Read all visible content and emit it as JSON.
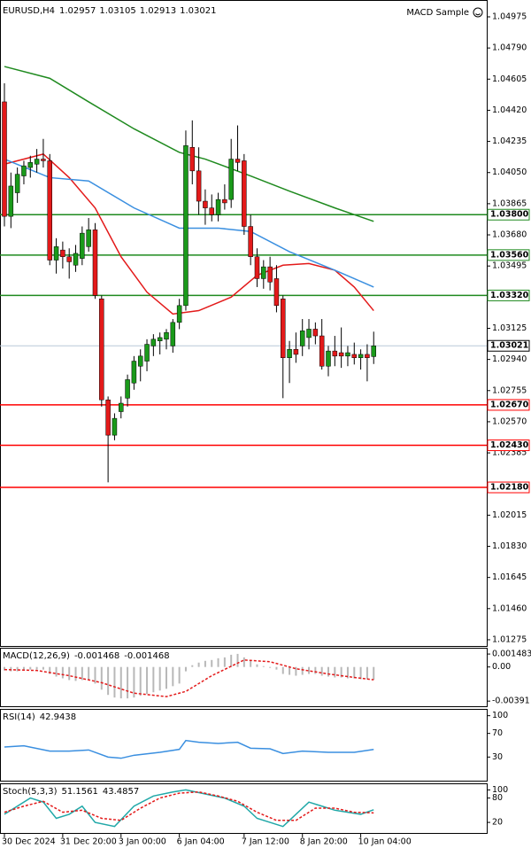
{
  "chart_data": [
    {
      "type": "candlestick",
      "title": "EURUSD,H4",
      "ohlc": [
        1.02957,
        1.03105,
        1.02913,
        1.03021
      ],
      "expert": "MACD Sample",
      "categories": [
        "30 Dec 2024",
        null,
        null,
        null,
        null,
        null,
        null,
        null,
        null,
        "31 Dec 20:00",
        null,
        null,
        null,
        null,
        null,
        null,
        null,
        null,
        "3 Jan 00:00",
        null,
        null,
        null,
        null,
        null,
        null,
        null,
        null,
        "6 Jan 04:00",
        null,
        null,
        null,
        null,
        null,
        null,
        null,
        null,
        null,
        "7 Jan 12:00",
        null,
        null,
        null,
        null,
        null,
        null,
        null,
        null,
        "8 Jan 20:00",
        null,
        null,
        null,
        null,
        null,
        null,
        null,
        null,
        "10 Jan 04:00",
        null,
        null
      ],
      "open": [
        1.0447,
        1.0379,
        1.0393,
        1.0403,
        1.0408,
        1.041,
        1.0413,
        1.0412,
        1.0353,
        1.0359,
        1.0355,
        1.035,
        1.0354,
        1.0361,
        1.0371,
        1.033,
        1.027,
        1.0249,
        1.0263,
        1.0271,
        1.028,
        1.029,
        1.0293,
        1.0302,
        1.0305,
        1.0306,
        1.0302,
        1.0316,
        1.0326,
        1.042,
        1.0406,
        1.0388,
        1.0384,
        1.038,
        1.0389,
        1.0389,
        1.0413,
        1.0412,
        1.0373,
        1.0355,
        1.0342,
        1.0349,
        1.0342,
        1.033,
        1.0295,
        1.03,
        1.0302,
        1.0307,
        1.0312,
        1.0308,
        1.029,
        1.0299,
        1.0298,
        1.0296,
        1.0297,
        1.0295,
        1.0297,
        1.02957
      ],
      "high": [
        1.0458,
        1.0405,
        1.0408,
        1.0412,
        1.0415,
        1.0419,
        1.0425,
        1.0416,
        1.0366,
        1.0364,
        1.036,
        1.0362,
        1.0373,
        1.0378,
        1.0375,
        1.0332,
        1.0272,
        1.0262,
        1.0272,
        1.0285,
        1.0296,
        1.03,
        1.0306,
        1.0309,
        1.031,
        1.0312,
        1.0318,
        1.033,
        1.043,
        1.0436,
        1.042,
        1.0395,
        1.0392,
        1.0393,
        1.0398,
        1.0425,
        1.0433,
        1.0416,
        1.038,
        1.036,
        1.0353,
        1.0355,
        1.035,
        1.0332,
        1.0305,
        1.031,
        1.0318,
        1.0318,
        1.0316,
        1.0318,
        1.0302,
        1.0308,
        1.0313,
        1.0302,
        1.0304,
        1.03,
        1.0303,
        1.03105
      ],
      "low": [
        1.0373,
        1.0372,
        1.0387,
        1.0398,
        1.0402,
        1.0405,
        1.0408,
        1.035,
        1.0345,
        1.0348,
        1.0342,
        1.0346,
        1.035,
        1.0358,
        1.033,
        1.0266,
        1.0221,
        1.0246,
        1.0259,
        1.0266,
        1.0276,
        1.0281,
        1.0287,
        1.0296,
        1.0297,
        1.03,
        1.0298,
        1.0312,
        1.0323,
        1.0398,
        1.038,
        1.0374,
        1.0376,
        1.0376,
        1.0383,
        1.0384,
        1.0406,
        1.0368,
        1.035,
        1.0337,
        1.0336,
        1.0335,
        1.0322,
        1.0271,
        1.028,
        1.0292,
        1.0296,
        1.03,
        1.0303,
        1.0288,
        1.0284,
        1.029,
        1.0289,
        1.029,
        1.0291,
        1.0288,
        1.0281,
        1.02913
      ],
      "close": [
        1.0379,
        1.0397,
        1.0404,
        1.0409,
        1.0411,
        1.0413,
        1.0412,
        1.0353,
        1.0361,
        1.0355,
        1.0352,
        1.0357,
        1.0369,
        1.0371,
        1.0332,
        1.027,
        1.0249,
        1.0259,
        1.0268,
        1.0282,
        1.0293,
        1.0296,
        1.0303,
        1.0306,
        1.0307,
        1.031,
        1.0316,
        1.0326,
        1.0421,
        1.0406,
        1.0388,
        1.0384,
        1.038,
        1.0389,
        1.0387,
        1.0413,
        1.0411,
        1.0373,
        1.0355,
        1.0342,
        1.0349,
        1.034,
        1.0326,
        1.0295,
        1.03,
        1.0297,
        1.0311,
        1.0312,
        1.0308,
        1.029,
        1.0299,
        1.0296,
        1.0296,
        1.0298,
        1.0295,
        1.0297,
        1.0295,
        1.03021
      ],
      "up_color": "#1a9a1a",
      "down_color": "#e31a1a",
      "overlays": [
        {
          "color": "#e31a1a",
          "x": [
            0,
            6,
            10,
            14,
            18,
            22,
            26,
            30,
            35,
            39,
            43,
            47,
            51,
            54,
            57
          ],
          "values": [
            1.041,
            1.0416,
            1.0402,
            1.0384,
            1.0355,
            1.0334,
            1.0321,
            1.0323,
            1.0331,
            1.0344,
            1.035,
            1.0351,
            1.0347,
            1.0337,
            1.0323
          ]
        },
        {
          "color": "#3a8fe0",
          "x": [
            0,
            7,
            13,
            20,
            27,
            33,
            38,
            44,
            51,
            57
          ],
          "values": [
            1.0413,
            1.0402,
            1.04,
            1.0384,
            1.0372,
            1.0372,
            1.037,
            1.0358,
            1.0347,
            1.0337
          ]
        },
        {
          "color": "#1f8a1f",
          "x": [
            0,
            7,
            13,
            20,
            27,
            31,
            38,
            44,
            51,
            57
          ],
          "values": [
            1.0468,
            1.0461,
            1.0447,
            1.0431,
            1.0417,
            1.0413,
            1.0403,
            1.0394,
            1.0384,
            1.0376
          ]
        }
      ],
      "levels": [
        {
          "value": 1.038,
          "label": "1.03800",
          "color": "#1f8a1f"
        },
        {
          "value": 1.0356,
          "label": "1.03560",
          "color": "#1f8a1f"
        },
        {
          "value": 1.0332,
          "label": "1.03320",
          "color": "#1f8a1f"
        },
        {
          "value": 1.0267,
          "label": "1.02670",
          "color": "#ff0000"
        },
        {
          "value": 1.0243,
          "label": "1.02430",
          "color": "#ff0000"
        },
        {
          "value": 1.0218,
          "label": "1.02180",
          "color": "#ff0000"
        }
      ],
      "last": 1.03021,
      "ylim": [
        1.01238,
        1.05075
      ],
      "yticks": [
        1.04975,
        {
          "value": 1.0479,
          "label": "1.04790"
        },
        1.04605,
        {
          "value": 1.0442,
          "label": "1.04420"
        },
        1.04235,
        {
          "value": 1.0405,
          "label": "1.04050"
        },
        1.03865,
        {
          "value": 1.0368,
          "label": "1.03680"
        },
        1.03495,
        1.03125,
        {
          "value": 1.0294,
          "label": "1.02940"
        },
        1.02755,
        {
          "value": 1.0257,
          "label": "1.02570"
        },
        1.02385,
        1.02015,
        {
          "value": 1.0183,
          "label": "1.01830"
        },
        1.01645,
        {
          "value": 1.0146,
          "label": "1.01460"
        },
        1.01275
      ]
    },
    {
      "type": "macd",
      "title": "MACD(12,26,9)",
      "readings": [
        -0.001468,
        -0.001468
      ],
      "values": [
        -0.0004,
        -0.0005,
        -0.0005,
        -0.0004,
        -0.0003,
        -0.0003,
        -0.0003,
        -0.0008,
        -0.0011,
        -0.0013,
        -0.0015,
        -0.0016,
        -0.0015,
        -0.0015,
        -0.0019,
        -0.0026,
        -0.0032,
        -0.0035,
        -0.0036,
        -0.0036,
        -0.0035,
        -0.0033,
        -0.0031,
        -0.0029,
        -0.0027,
        -0.0025,
        -0.0022,
        -0.0019,
        -0.0005,
        0.0002,
        0.0005,
        0.0007,
        0.0008,
        0.001,
        0.0011,
        0.0014,
        0.0015,
        0.0011,
        0.0007,
        0.0003,
        0.0001,
        -0.0001,
        -0.0003,
        -0.0008,
        -0.0009,
        -0.001,
        -0.0009,
        -0.0008,
        -0.0008,
        -0.001,
        -0.0011,
        -0.0012,
        -0.0012,
        -0.0013,
        -0.0013,
        -0.0014,
        -0.0014,
        -0.001468
      ],
      "color": "#b8b8b8",
      "signal": {
        "color": "#e31a1a",
        "dash": true,
        "x": [
          0,
          5,
          10,
          15,
          20,
          25,
          28,
          32,
          37,
          41,
          45,
          50,
          54,
          57
        ],
        "values": [
          -0.0003,
          -0.0004,
          -0.001,
          -0.0018,
          -0.003,
          -0.0034,
          -0.0028,
          -0.001,
          0.0008,
          0.0006,
          -0.0002,
          -0.0008,
          -0.0012,
          -0.001468
        ]
      },
      "ylim": [
        -0.0045,
        0.0021
      ],
      "yticks": [
        0.001483,
        {
          "value": 0,
          "label": "0.00"
        },
        -0.00391
      ]
    },
    {
      "type": "line",
      "title": "RSI(14)",
      "readings": [
        42.9438
      ],
      "series": [
        {
          "color": "#3a8fe0",
          "x": [
            0,
            3,
            7,
            10,
            13,
            16,
            18,
            20,
            24,
            27,
            28,
            30,
            33,
            36,
            38,
            41,
            43,
            46,
            50,
            54,
            57
          ],
          "values": [
            47,
            49,
            40,
            40,
            42,
            30,
            28,
            33,
            38,
            43,
            58,
            55,
            53,
            55,
            45,
            44,
            36,
            40,
            38,
            38,
            42.9438
          ]
        }
      ],
      "ylim": [
        -10,
        110
      ],
      "yticks": [
        100,
        70,
        30
      ]
    },
    {
      "type": "line",
      "title": "Stoch(5,3,3)",
      "readings": [
        51.1561,
        43.4857
      ],
      "series": [
        {
          "color": "#20a8a8",
          "x": [
            0,
            2,
            4,
            6,
            8,
            10,
            12,
            14,
            17,
            20,
            23,
            26,
            28,
            31,
            34,
            37,
            39,
            41,
            43,
            45,
            47,
            49,
            51,
            53,
            55,
            57
          ],
          "values": [
            40,
            60,
            80,
            70,
            30,
            40,
            60,
            20,
            10,
            60,
            85,
            95,
            100,
            90,
            80,
            60,
            30,
            20,
            10,
            40,
            70,
            60,
            50,
            45,
            40,
            51.1561
          ]
        },
        {
          "color": "#e31a1a",
          "dash": true,
          "x": [
            0,
            3,
            6,
            9,
            12,
            15,
            18,
            21,
            24,
            27,
            30,
            33,
            36,
            39,
            42,
            45,
            48,
            51,
            54,
            57
          ],
          "values": [
            45,
            60,
            72,
            45,
            50,
            30,
            25,
            55,
            80,
            92,
            95,
            85,
            72,
            45,
            25,
            25,
            55,
            55,
            45,
            43.4857
          ]
        }
      ],
      "ylim": [
        -6,
        114
      ],
      "yticks": [
        100,
        80,
        20
      ]
    }
  ]
}
